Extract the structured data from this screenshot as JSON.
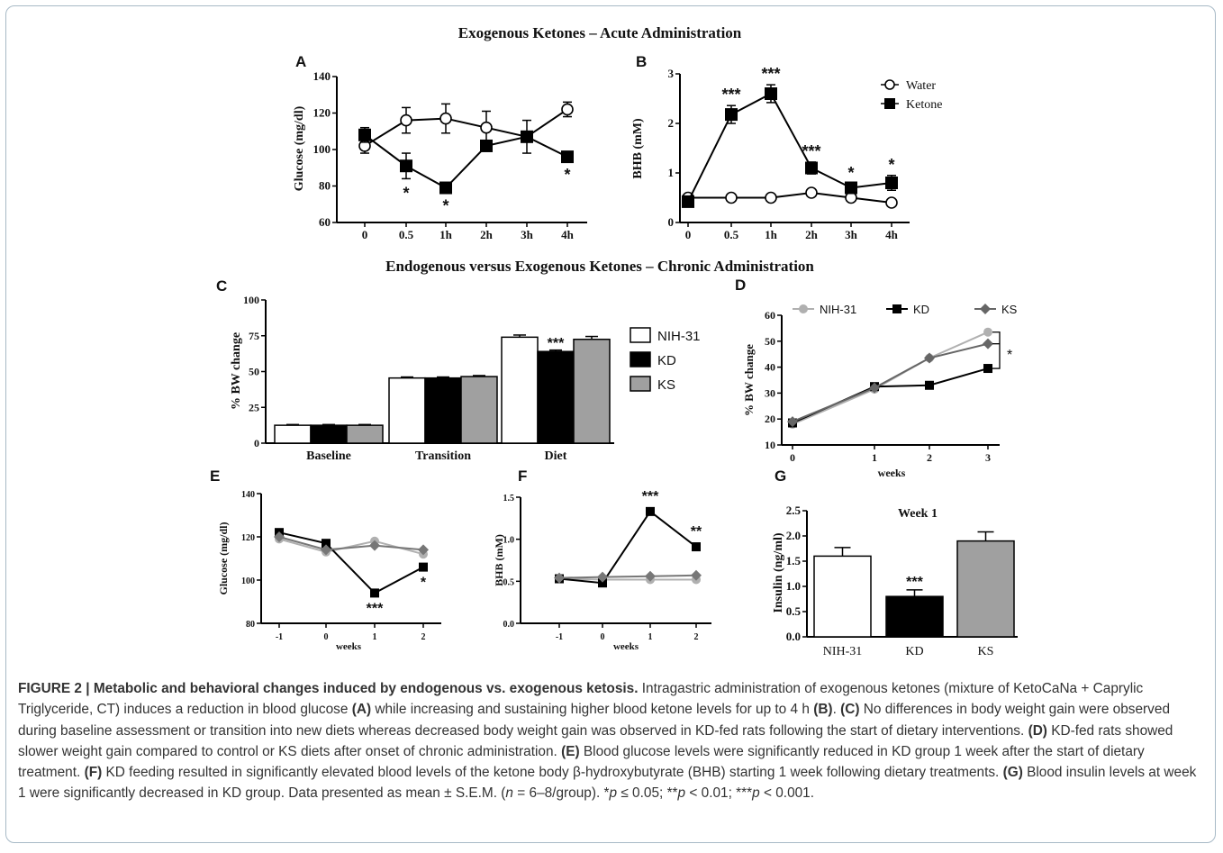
{
  "section_titles": {
    "acute": "Exogenous Ketones – Acute Administration",
    "chronic": "Endogenous versus Exogenous Ketones – Chronic Administration"
  },
  "chart_data": [
    {
      "panel": "A",
      "type": "line",
      "ylabel": "Glucose (mg/dl)",
      "ylim": [
        60,
        140
      ],
      "yticks": [
        60,
        80,
        100,
        120,
        140
      ],
      "categories": [
        "0",
        "0.5",
        "1h",
        "2h",
        "3h",
        "4h"
      ],
      "series": [
        {
          "name": "Water",
          "marker": "circle-open",
          "values": [
            102,
            116,
            117,
            112,
            107,
            122
          ],
          "errors": [
            4,
            7,
            8,
            9,
            9,
            4
          ]
        },
        {
          "name": "Ketone",
          "marker": "square-filled",
          "values": [
            108,
            91,
            79,
            102,
            107,
            96
          ],
          "errors": [
            4,
            7,
            2,
            2,
            2,
            2
          ]
        }
      ],
      "annotations": [
        {
          "index": 1,
          "text": "*",
          "pos": "below"
        },
        {
          "index": 2,
          "text": "*",
          "pos": "below"
        },
        {
          "index": 5,
          "text": "*",
          "pos": "below"
        }
      ]
    },
    {
      "panel": "B",
      "type": "line",
      "ylabel": "BHB (mM)",
      "ylim": [
        0,
        3
      ],
      "yticks": [
        0,
        1,
        2,
        3
      ],
      "categories": [
        "0",
        "0.5",
        "1h",
        "2h",
        "3h",
        "4h"
      ],
      "legend": "top-right",
      "series": [
        {
          "name": "Water",
          "marker": "circle-open",
          "values": [
            0.5,
            0.5,
            0.5,
            0.6,
            0.5,
            0.4
          ],
          "errors": [
            0.03,
            0.03,
            0.03,
            0.05,
            0.03,
            0.03
          ]
        },
        {
          "name": "Ketone",
          "marker": "square-filled",
          "values": [
            0.42,
            2.18,
            2.6,
            1.1,
            0.7,
            0.8
          ],
          "errors": [
            0.05,
            0.18,
            0.18,
            0.12,
            0.08,
            0.15
          ]
        }
      ],
      "annotations": [
        {
          "index": 1,
          "text": "***",
          "pos": "above"
        },
        {
          "index": 2,
          "text": "***",
          "pos": "above"
        },
        {
          "index": 3,
          "text": "***",
          "pos": "above"
        },
        {
          "index": 4,
          "text": "*",
          "pos": "above"
        },
        {
          "index": 5,
          "text": "*",
          "pos": "above"
        }
      ]
    },
    {
      "panel": "C",
      "type": "bar",
      "ylabel": "% BW change",
      "ylim": [
        0,
        100
      ],
      "yticks": [
        0,
        25,
        50,
        75,
        100
      ],
      "categories": [
        "Baseline",
        "Transition",
        "Diet"
      ],
      "legend": "right",
      "series": [
        {
          "name": "NIH-31",
          "color": "#ffffff",
          "values": [
            12.5,
            45.5,
            74
          ],
          "errors": [
            0.5,
            0.7,
            1.5
          ]
        },
        {
          "name": "KD",
          "color": "#000000",
          "values": [
            12.5,
            45.5,
            64
          ],
          "errors": [
            0.5,
            0.7,
            1
          ]
        },
        {
          "name": "KS",
          "color": "#a0a0a0",
          "values": [
            12.5,
            46.5,
            72.5
          ],
          "errors": [
            0.5,
            0.7,
            2
          ]
        }
      ],
      "annotations": [
        {
          "category": 2,
          "series": 1,
          "text": "***"
        }
      ]
    },
    {
      "panel": "D",
      "type": "line",
      "ylabel": "% BW change",
      "xlabel": "weeks",
      "ylim": [
        10,
        60
      ],
      "yticks": [
        10,
        20,
        30,
        40,
        50,
        60
      ],
      "categories": [
        "0",
        "1",
        "2",
        "3"
      ],
      "legend": "top",
      "series": [
        {
          "name": "NIH-31",
          "color": "#b0b0b0",
          "marker": "circle",
          "values": [
            18,
            31.5,
            43.5,
            53.5
          ]
        },
        {
          "name": "KD",
          "color": "#000000",
          "marker": "square",
          "values": [
            18.5,
            32.5,
            33,
            39.5
          ]
        },
        {
          "name": "KS",
          "color": "#666666",
          "marker": "diamond",
          "values": [
            19,
            32,
            43.5,
            49
          ]
        }
      ],
      "annotations": [
        {
          "text": "*"
        }
      ]
    },
    {
      "panel": "E",
      "type": "line",
      "ylabel": "Glucose (mg/dl)",
      "xlabel": "weeks",
      "ylim": [
        80,
        140
      ],
      "yticks": [
        80,
        100,
        120,
        140
      ],
      "categories": [
        "-1",
        "0",
        "1",
        "2"
      ],
      "series": [
        {
          "name": "NIH-31",
          "color": "#b0b0b0",
          "values": [
            119,
            113,
            118,
            112
          ]
        },
        {
          "name": "KD",
          "color": "#000000",
          "values": [
            122,
            117,
            94,
            106
          ]
        },
        {
          "name": "KS",
          "color": "#777777",
          "values": [
            120,
            114,
            116,
            114
          ]
        }
      ],
      "annotations": [
        {
          "index": 2,
          "text": "***",
          "pos": "below"
        },
        {
          "index": 3,
          "text": "*",
          "pos": "below"
        }
      ]
    },
    {
      "panel": "F",
      "type": "line",
      "ylabel": "BHB (mM)",
      "xlabel": "weeks",
      "ylim": [
        0,
        1.5
      ],
      "yticks": [
        "0.0",
        "0.5",
        "1.0",
        "1.5"
      ],
      "categories": [
        "-1",
        "0",
        "1",
        "2"
      ],
      "series": [
        {
          "name": "NIH-31",
          "color": "#b0b0b0",
          "values": [
            0.53,
            0.52,
            0.52,
            0.52
          ]
        },
        {
          "name": "KD",
          "color": "#000000",
          "values": [
            0.53,
            0.48,
            1.33,
            0.91
          ]
        },
        {
          "name": "KS",
          "color": "#777777",
          "values": [
            0.54,
            0.55,
            0.56,
            0.57
          ]
        }
      ],
      "annotations": [
        {
          "index": 2,
          "text": "***",
          "pos": "above"
        },
        {
          "index": 3,
          "text": "**",
          "pos": "above"
        }
      ]
    },
    {
      "panel": "G",
      "type": "bar",
      "title": "Week 1",
      "ylabel": "Insulin (ng/ml)",
      "ylim": [
        0,
        2.5
      ],
      "yticks": [
        "0.0",
        "0.5",
        "1.0",
        "1.5",
        "2.0",
        "2.5"
      ],
      "categories": [
        "NIH-31",
        "KD",
        "KS"
      ],
      "colors": [
        "#ffffff",
        "#000000",
        "#a0a0a0"
      ],
      "values": [
        1.6,
        0.8,
        1.9
      ],
      "errors": [
        0.17,
        0.13,
        0.18
      ],
      "annotations": [
        {
          "index": 1,
          "text": "***"
        }
      ]
    }
  ],
  "caption": {
    "label": "FIGURE 2 | ",
    "title": "Metabolic and behavioral changes induced by endogenous vs. exogenous ketosis.",
    "body": [
      {
        "t": " Intragastric administration of exogenous ketones (mixture of KetoCaNa + Caprylic Triglyceride, CT) induces a reduction in blood glucose "
      },
      {
        "t": "(A)",
        "b": true
      },
      {
        "t": " while increasing and sustaining higher blood ketone levels for up to 4 h "
      },
      {
        "t": "(B)",
        "b": true
      },
      {
        "t": ". "
      },
      {
        "t": "(C)",
        "b": true
      },
      {
        "t": " No differences in body weight gain were observed during baseline assessment or transition into new diets whereas decreased body weight gain was observed in KD-fed rats following the start of dietary interventions. "
      },
      {
        "t": "(D)",
        "b": true
      },
      {
        "t": " KD-fed rats showed slower weight gain compared to control or KS diets after onset of chronic administration. "
      },
      {
        "t": "(E)",
        "b": true
      },
      {
        "t": " Blood glucose levels were significantly reduced in KD group 1 week after the start of dietary treatment. "
      },
      {
        "t": "(F)",
        "b": true
      },
      {
        "t": " KD feeding resulted in significantly elevated blood levels of the ketone body β-hydroxybutyrate (BHB) starting 1 week following dietary treatments. "
      },
      {
        "t": "(G)",
        "b": true
      },
      {
        "t": " Blood insulin levels at week 1 were significantly decreased in KD group. Data presented as mean ± S.E.M. ("
      },
      {
        "t": "n",
        "i": true
      },
      {
        "t": " = 6–8/group). *"
      },
      {
        "t": "p",
        "i": true
      },
      {
        "t": " ≤ 0.05; **"
      },
      {
        "t": "p",
        "i": true
      },
      {
        "t": " < 0.01; ***"
      },
      {
        "t": "p",
        "i": true
      },
      {
        "t": " < 0.001."
      }
    ]
  }
}
